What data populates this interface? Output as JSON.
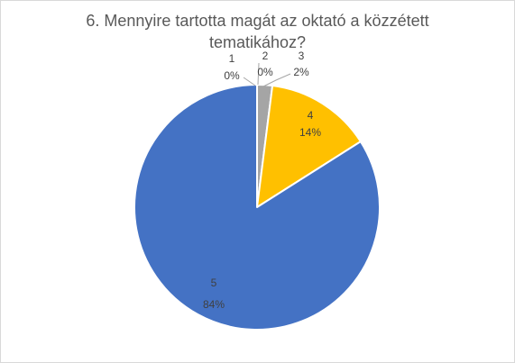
{
  "chart_data": {
    "type": "pie",
    "title_lines": [
      "6. Mennyire tartotta magát az oktató a közzétett",
      "tematikához?"
    ],
    "categories": [
      "1",
      "2",
      "3",
      "4",
      "5"
    ],
    "values": [
      0,
      0,
      2,
      14,
      84
    ],
    "value_labels": [
      "0%",
      "0%",
      "2%",
      "14%",
      "84%"
    ],
    "colors": [
      "#5b9bd5",
      "#ed7d31",
      "#a5a5a5",
      "#ffc000",
      "#4472c4"
    ],
    "start_angle_deg": 0,
    "direction": "clockwise",
    "legend": "none"
  }
}
